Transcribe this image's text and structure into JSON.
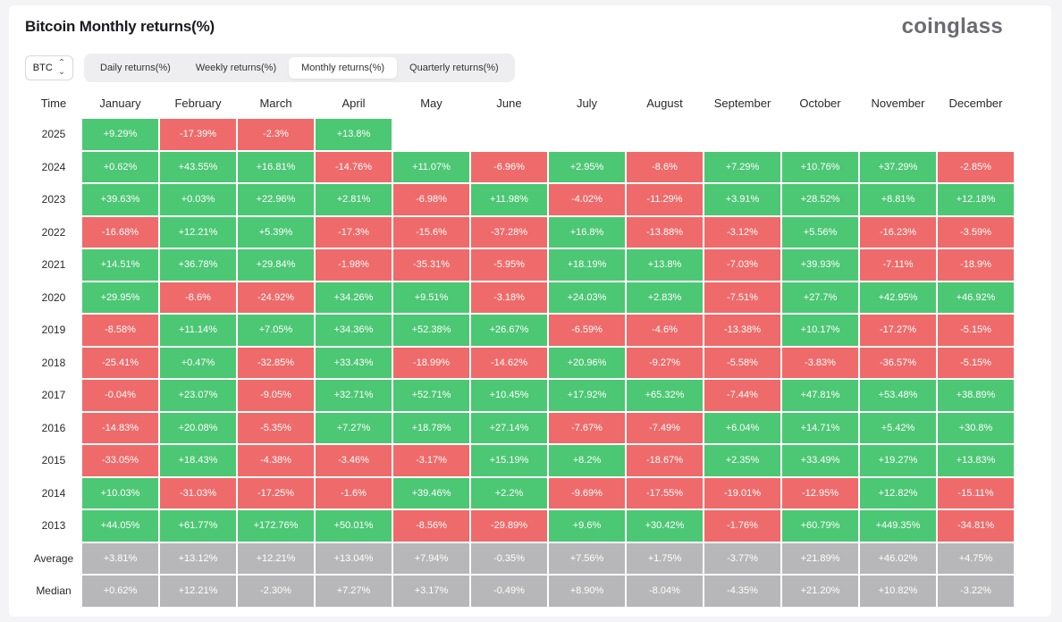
{
  "header": {
    "title": "Bitcoin Monthly returns(%)",
    "logo_text": "coinglass"
  },
  "controls": {
    "asset": "BTC",
    "tabs": [
      "Daily returns(%)",
      "Weekly returns(%)",
      "Monthly returns(%)",
      "Quarterly returns(%)"
    ],
    "active_tab": 2
  },
  "colors": {
    "positive": "#4cc774",
    "negative": "#ef6a6a",
    "summary": "#b7b7b9"
  },
  "table": {
    "columns": [
      "Time",
      "January",
      "February",
      "March",
      "April",
      "May",
      "June",
      "July",
      "August",
      "September",
      "October",
      "November",
      "December"
    ],
    "rows": [
      {
        "label": "2025",
        "values": [
          "+9.29%",
          "-17.39%",
          "-2.3%",
          "+13.8%",
          "",
          "",
          "",
          "",
          "",
          "",
          "",
          ""
        ]
      },
      {
        "label": "2024",
        "values": [
          "+0.62%",
          "+43.55%",
          "+16.81%",
          "-14.76%",
          "+11.07%",
          "-6.96%",
          "+2.95%",
          "-8.6%",
          "+7.29%",
          "+10.76%",
          "+37.29%",
          "-2.85%"
        ]
      },
      {
        "label": "2023",
        "values": [
          "+39.63%",
          "+0.03%",
          "+22.96%",
          "+2.81%",
          "-6.98%",
          "+11.98%",
          "-4.02%",
          "-11.29%",
          "+3.91%",
          "+28.52%",
          "+8.81%",
          "+12.18%"
        ]
      },
      {
        "label": "2022",
        "values": [
          "-16.68%",
          "+12.21%",
          "+5.39%",
          "-17.3%",
          "-15.6%",
          "-37.28%",
          "+16.8%",
          "-13.88%",
          "-3.12%",
          "+5.56%",
          "-16.23%",
          "-3.59%"
        ]
      },
      {
        "label": "2021",
        "values": [
          "+14.51%",
          "+36.78%",
          "+29.84%",
          "-1.98%",
          "-35.31%",
          "-5.95%",
          "+18.19%",
          "+13.8%",
          "-7.03%",
          "+39.93%",
          "-7.11%",
          "-18.9%"
        ]
      },
      {
        "label": "2020",
        "values": [
          "+29.95%",
          "-8.6%",
          "-24.92%",
          "+34.26%",
          "+9.51%",
          "-3.18%",
          "+24.03%",
          "+2.83%",
          "-7.51%",
          "+27.7%",
          "+42.95%",
          "+46.92%"
        ]
      },
      {
        "label": "2019",
        "values": [
          "-8.58%",
          "+11.14%",
          "+7.05%",
          "+34.36%",
          "+52.38%",
          "+26.67%",
          "-6.59%",
          "-4.6%",
          "-13.38%",
          "+10.17%",
          "-17.27%",
          "-5.15%"
        ]
      },
      {
        "label": "2018",
        "values": [
          "-25.41%",
          "+0.47%",
          "-32.85%",
          "+33.43%",
          "-18.99%",
          "-14.62%",
          "+20.96%",
          "-9.27%",
          "-5.58%",
          "-3.83%",
          "-36.57%",
          "-5.15%"
        ]
      },
      {
        "label": "2017",
        "values": [
          "-0.04%",
          "+23.07%",
          "-9.05%",
          "+32.71%",
          "+52.71%",
          "+10.45%",
          "+17.92%",
          "+65.32%",
          "-7.44%",
          "+47.81%",
          "+53.48%",
          "+38.89%"
        ]
      },
      {
        "label": "2016",
        "values": [
          "-14.83%",
          "+20.08%",
          "-5.35%",
          "+7.27%",
          "+18.78%",
          "+27.14%",
          "-7.67%",
          "-7.49%",
          "+6.04%",
          "+14.71%",
          "+5.42%",
          "+30.8%"
        ]
      },
      {
        "label": "2015",
        "values": [
          "-33.05%",
          "+18.43%",
          "-4.38%",
          "-3.46%",
          "-3.17%",
          "+15.19%",
          "+8.2%",
          "-18.67%",
          "+2.35%",
          "+33.49%",
          "+19.27%",
          "+13.83%"
        ]
      },
      {
        "label": "2014",
        "values": [
          "+10.03%",
          "-31.03%",
          "-17.25%",
          "-1.6%",
          "+39.46%",
          "+2.2%",
          "-9.69%",
          "-17.55%",
          "-19.01%",
          "-12.95%",
          "+12.82%",
          "-15.11%"
        ]
      },
      {
        "label": "2013",
        "values": [
          "+44.05%",
          "+61.77%",
          "+172.76%",
          "+50.01%",
          "-8.56%",
          "-29.89%",
          "+9.6%",
          "+30.42%",
          "-1.76%",
          "+60.79%",
          "+449.35%",
          "-34.81%"
        ]
      },
      {
        "label": "Average",
        "summary": true,
        "values": [
          "+3.81%",
          "+13.12%",
          "+12.21%",
          "+13.04%",
          "+7.94%",
          "-0.35%",
          "+7.56%",
          "+1.75%",
          "-3.77%",
          "+21.89%",
          "+46.02%",
          "+4.75%"
        ]
      },
      {
        "label": "Median",
        "summary": true,
        "values": [
          "+0.62%",
          "+12.21%",
          "-2.30%",
          "+7.27%",
          "+3.17%",
          "-0.49%",
          "+8.90%",
          "-8.04%",
          "-4.35%",
          "+21.20%",
          "+10.82%",
          "-3.22%"
        ]
      }
    ]
  }
}
